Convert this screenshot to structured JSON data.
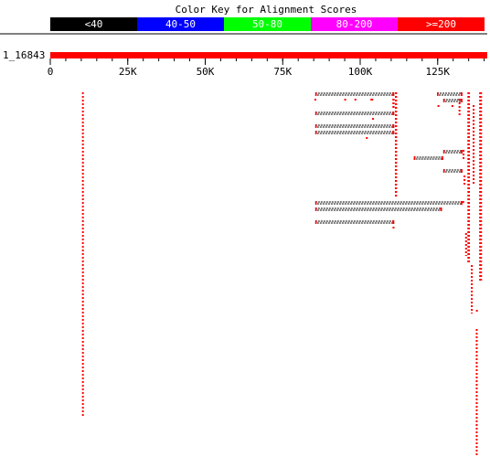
{
  "colors": {
    "background": "#ffffff",
    "hit": "#ff0000",
    "dash": "#000000",
    "axis": "#000000"
  },
  "color_key": {
    "title": "Color Key for Alignment Scores",
    "ranges": [
      {
        "label": "<40",
        "color": "#000000",
        "text_color": "#ffffff"
      },
      {
        "label": "40-50",
        "color": "#0000ff",
        "text_color": "#ffffff"
      },
      {
        "label": "50-80",
        "color": "#00ff00",
        "text_color": "#ffffff"
      },
      {
        "label": "80-200",
        "color": "#ff00ff",
        "text_color": "#ffffff"
      },
      {
        "label": ">=200",
        "color": "#ff0000",
        "text_color": "#ffffff"
      }
    ]
  },
  "chart_data": {
    "type": "alignment-graphic",
    "query_label": "1_16843",
    "xlim": [
      0,
      141000
    ],
    "ticks": [
      {
        "value": 0,
        "label": "0"
      },
      {
        "value": 25000,
        "label": "25K"
      },
      {
        "value": 50000,
        "label": "50K"
      },
      {
        "value": 75000,
        "label": "75K"
      },
      {
        "value": 100000,
        "label": "100K"
      },
      {
        "value": 125000,
        "label": "125K"
      }
    ],
    "hits": [
      {
        "start": 10300,
        "end": 10600,
        "row_start": 0,
        "row_end": 50,
        "kind": "dotted"
      },
      {
        "start": 85500,
        "end": 111000,
        "row_start": 0,
        "row_end": 0,
        "kind": "dashed"
      },
      {
        "start": 124800,
        "end": 133000,
        "row_start": 0,
        "row_end": 0,
        "kind": "dashed"
      },
      {
        "start": 134600,
        "end": 135400,
        "row_start": 0,
        "row_end": 26,
        "kind": "dotted"
      },
      {
        "start": 138400,
        "end": 139300,
        "row_start": 0,
        "row_end": 29,
        "kind": "dotted"
      },
      {
        "start": 111200,
        "end": 111900,
        "row_start": 0,
        "row_end": 16,
        "kind": "dotted"
      },
      {
        "start": 85300,
        "end": 85500,
        "row_start": 1,
        "row_end": 1,
        "kind": "dotted"
      },
      {
        "start": 94900,
        "end": 95400,
        "row_start": 1,
        "row_end": 1,
        "kind": "dotted"
      },
      {
        "start": 98200,
        "end": 98700,
        "row_start": 1,
        "row_end": 1,
        "kind": "dotted"
      },
      {
        "start": 103300,
        "end": 104200,
        "row_start": 1,
        "row_end": 1,
        "kind": "dotted"
      },
      {
        "start": 110400,
        "end": 111100,
        "row_start": 1,
        "row_end": 2,
        "kind": "dotted"
      },
      {
        "start": 126800,
        "end": 133000,
        "row_start": 1,
        "row_end": 1,
        "kind": "dashed"
      },
      {
        "start": 125000,
        "end": 125500,
        "row_start": 2,
        "row_end": 2,
        "kind": "dotted"
      },
      {
        "start": 131800,
        "end": 132300,
        "row_start": 1,
        "row_end": 3,
        "kind": "dotted"
      },
      {
        "start": 129500,
        "end": 130000,
        "row_start": 2,
        "row_end": 2,
        "kind": "dotted"
      },
      {
        "start": 136300,
        "end": 136900,
        "row_start": 2,
        "row_end": 14,
        "kind": "dotted"
      },
      {
        "start": 85500,
        "end": 111000,
        "row_start": 3,
        "row_end": 3,
        "kind": "dashed"
      },
      {
        "start": 103900,
        "end": 104400,
        "row_start": 4,
        "row_end": 4,
        "kind": "dotted"
      },
      {
        "start": 85500,
        "end": 111000,
        "row_start": 5,
        "row_end": 5,
        "kind": "dashed"
      },
      {
        "start": 85500,
        "end": 111000,
        "row_start": 6,
        "row_end": 6,
        "kind": "dashed"
      },
      {
        "start": 101900,
        "end": 102400,
        "row_start": 7,
        "row_end": 7,
        "kind": "dotted"
      },
      {
        "start": 117300,
        "end": 126800,
        "row_start": 10,
        "row_end": 10,
        "kind": "dashed"
      },
      {
        "start": 126800,
        "end": 133000,
        "row_start": 9,
        "row_end": 9,
        "kind": "dashed"
      },
      {
        "start": 133100,
        "end": 133600,
        "row_start": 9,
        "row_end": 10,
        "kind": "dotted"
      },
      {
        "start": 126800,
        "end": 133000,
        "row_start": 12,
        "row_end": 12,
        "kind": "dashed"
      },
      {
        "start": 133400,
        "end": 133900,
        "row_start": 13,
        "row_end": 14,
        "kind": "dotted"
      },
      {
        "start": 133000,
        "end": 133500,
        "row_start": 17,
        "row_end": 17,
        "kind": "dotted"
      },
      {
        "start": 85500,
        "end": 133000,
        "row_start": 17,
        "row_end": 17,
        "kind": "dashed"
      },
      {
        "start": 85500,
        "end": 126400,
        "row_start": 18,
        "row_end": 18,
        "kind": "dashed"
      },
      {
        "start": 85500,
        "end": 111000,
        "row_start": 20,
        "row_end": 20,
        "kind": "dashed"
      },
      {
        "start": 110500,
        "end": 111000,
        "row_start": 21,
        "row_end": 21,
        "kind": "dotted"
      },
      {
        "start": 133900,
        "end": 134400,
        "row_start": 22,
        "row_end": 25,
        "kind": "dotted"
      },
      {
        "start": 135800,
        "end": 136200,
        "row_start": 27,
        "row_end": 34,
        "kind": "dotted"
      },
      {
        "start": 137400,
        "end": 137900,
        "row_start": 34,
        "row_end": 34,
        "kind": "dotted"
      },
      {
        "start": 137300,
        "end": 137900,
        "row_start": 37,
        "row_end": 57,
        "kind": "dotted"
      }
    ]
  }
}
